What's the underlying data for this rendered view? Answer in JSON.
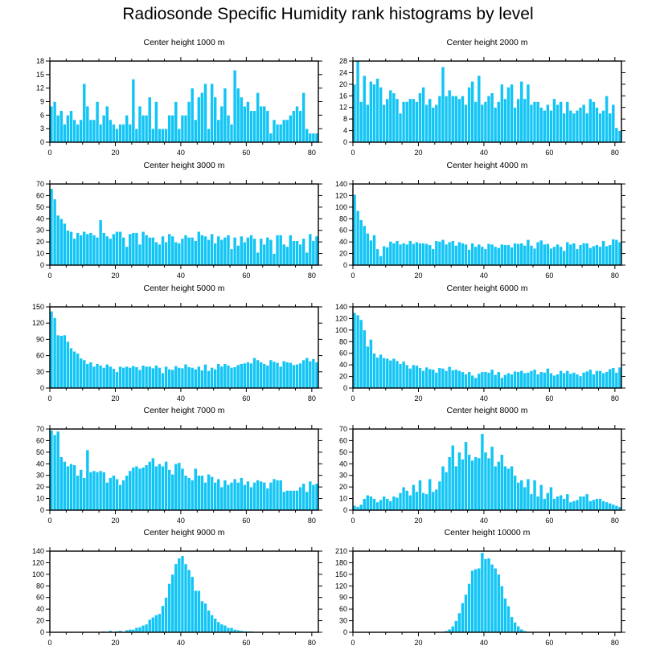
{
  "title": "Radiosonde Specific Humidity rank histograms by level",
  "colors": {
    "bar": "#12C5F5",
    "bar_edge": "#ffffff",
    "axis": "#000000"
  },
  "chart_data": [
    {
      "type": "bar",
      "title": "Center height 1000 m",
      "xlim": [
        0,
        82
      ],
      "ylim": [
        0,
        18
      ],
      "xticks": [
        0,
        20,
        40,
        60,
        80
      ],
      "yticks": [
        0,
        3,
        6,
        9,
        12,
        15,
        18
      ],
      "values": [
        8,
        9,
        6,
        7,
        4,
        6,
        7,
        5,
        4,
        5,
        13,
        8,
        5,
        5,
        9,
        4,
        6,
        8,
        5,
        4,
        3,
        4,
        4,
        6,
        4,
        14,
        3,
        8,
        6,
        6,
        10,
        3,
        9,
        3,
        3,
        3,
        6,
        6,
        9,
        3,
        6,
        6,
        9,
        12,
        5,
        10,
        11,
        13,
        3,
        13,
        10,
        5,
        8,
        12,
        6,
        4,
        16,
        12,
        10,
        8,
        9,
        7,
        7,
        11,
        8,
        8,
        7,
        2,
        5,
        4,
        4,
        5,
        5,
        6,
        7,
        8,
        7,
        11,
        3,
        2,
        2,
        2
      ]
    },
    {
      "type": "bar",
      "title": "Center height 2000 m",
      "xlim": [
        0,
        82
      ],
      "ylim": [
        0,
        28
      ],
      "xticks": [
        0,
        20,
        40,
        60,
        80
      ],
      "yticks": [
        0,
        4,
        8,
        12,
        16,
        20,
        24,
        28
      ],
      "values": [
        20,
        28,
        14,
        23,
        13,
        21,
        20,
        22,
        19,
        13,
        15,
        18,
        17,
        15,
        10,
        14,
        14,
        15,
        15,
        14,
        17,
        19,
        13,
        15,
        12,
        13,
        16,
        26,
        16,
        18,
        16,
        16,
        15,
        16,
        13,
        19,
        21,
        14,
        23,
        13,
        14,
        16,
        17,
        12,
        14,
        20,
        15,
        19,
        20,
        12,
        15,
        21,
        15,
        20,
        13,
        14,
        14,
        12,
        11,
        13,
        11,
        15,
        13,
        14,
        10,
        14,
        11,
        10,
        11,
        12,
        13,
        10,
        15,
        14,
        12,
        10,
        11,
        16,
        10,
        13,
        5,
        4
      ]
    },
    {
      "type": "bar",
      "title": "Center height 3000 m",
      "xlim": [
        0,
        82
      ],
      "ylim": [
        0,
        70
      ],
      "xticks": [
        0,
        20,
        40,
        60,
        80
      ],
      "yticks": [
        0,
        10,
        20,
        30,
        40,
        50,
        60,
        70
      ],
      "values": [
        66,
        57,
        43,
        40,
        36,
        30,
        29,
        23,
        28,
        26,
        29,
        27,
        28,
        26,
        24,
        39,
        28,
        25,
        23,
        27,
        29,
        29,
        24,
        16,
        27,
        28,
        28,
        18,
        29,
        26,
        24,
        24,
        20,
        18,
        25,
        20,
        27,
        25,
        20,
        19,
        23,
        26,
        24,
        24,
        21,
        29,
        26,
        25,
        22,
        27,
        19,
        25,
        22,
        24,
        26,
        14,
        24,
        17,
        25,
        20,
        24,
        26,
        23,
        11,
        23,
        18,
        24,
        22,
        10,
        26,
        26,
        18,
        16,
        26,
        21,
        21,
        18,
        23,
        11,
        27,
        21,
        25
      ]
    },
    {
      "type": "bar",
      "title": "Center height 4000 m",
      "xlim": [
        0,
        82
      ],
      "ylim": [
        0,
        140
      ],
      "xticks": [
        0,
        20,
        40,
        60,
        80
      ],
      "yticks": [
        0,
        20,
        40,
        60,
        80,
        100,
        120,
        140
      ],
      "values": [
        122,
        94,
        78,
        68,
        55,
        43,
        52,
        28,
        16,
        33,
        31,
        41,
        38,
        42,
        36,
        38,
        36,
        42,
        37,
        40,
        38,
        38,
        37,
        35,
        28,
        42,
        41,
        44,
        36,
        40,
        42,
        34,
        40,
        38,
        36,
        27,
        38,
        32,
        36,
        32,
        28,
        37,
        36,
        32,
        30,
        36,
        35,
        35,
        31,
        38,
        37,
        38,
        34,
        44,
        34,
        29,
        40,
        43,
        36,
        37,
        29,
        32,
        36,
        32,
        25,
        40,
        36,
        38,
        28,
        35,
        38,
        38,
        30,
        33,
        35,
        32,
        42,
        33,
        35,
        45,
        44,
        40
      ]
    },
    {
      "type": "bar",
      "title": "Center height 5000 m",
      "xlim": [
        0,
        82
      ],
      "ylim": [
        0,
        150
      ],
      "xticks": [
        0,
        20,
        40,
        60,
        80
      ],
      "yticks": [
        0,
        30,
        60,
        90,
        120,
        150
      ],
      "values": [
        142,
        130,
        98,
        97,
        98,
        86,
        74,
        68,
        64,
        55,
        52,
        45,
        48,
        40,
        45,
        42,
        38,
        44,
        40,
        36,
        30,
        40,
        38,
        40,
        38,
        41,
        39,
        34,
        42,
        40,
        40,
        37,
        42,
        38,
        28,
        40,
        35,
        34,
        41,
        38,
        37,
        44,
        39,
        38,
        35,
        40,
        33,
        44,
        32,
        38,
        35,
        45,
        40,
        45,
        42,
        38,
        39,
        43,
        45,
        46,
        48,
        46,
        56,
        52,
        48,
        45,
        42,
        52,
        49,
        47,
        40,
        50,
        48,
        47,
        43,
        44,
        46,
        52,
        56,
        50,
        54,
        48
      ]
    },
    {
      "type": "bar",
      "title": "Center height 6000 m",
      "xlim": [
        0,
        82
      ],
      "ylim": [
        0,
        140
      ],
      "xticks": [
        0,
        20,
        40,
        60,
        80
      ],
      "yticks": [
        0,
        20,
        40,
        60,
        80,
        100,
        120,
        140
      ],
      "values": [
        130,
        126,
        118,
        100,
        72,
        84,
        60,
        53,
        58,
        52,
        51,
        48,
        51,
        47,
        42,
        46,
        40,
        34,
        40,
        39,
        35,
        30,
        36,
        33,
        32,
        27,
        35,
        34,
        30,
        37,
        31,
        32,
        30,
        28,
        24,
        28,
        22,
        18,
        25,
        28,
        28,
        27,
        32,
        23,
        28,
        18,
        23,
        26,
        24,
        29,
        28,
        30,
        26,
        27,
        30,
        32,
        24,
        28,
        27,
        34,
        26,
        22,
        24,
        30,
        26,
        30,
        25,
        27,
        24,
        21,
        27,
        29,
        32,
        24,
        30,
        30,
        26,
        28,
        33,
        35,
        27,
        36
      ]
    },
    {
      "type": "bar",
      "title": "Center height 7000 m",
      "xlim": [
        0,
        82
      ],
      "ylim": [
        0,
        70
      ],
      "xticks": [
        0,
        20,
        40,
        60,
        80
      ],
      "yticks": [
        0,
        10,
        20,
        30,
        40,
        50,
        60,
        70
      ],
      "values": [
        69,
        65,
        68,
        46,
        42,
        38,
        40,
        39,
        30,
        35,
        28,
        52,
        33,
        34,
        33,
        34,
        33,
        24,
        28,
        30,
        27,
        22,
        26,
        30,
        34,
        37,
        38,
        36,
        37,
        39,
        42,
        45,
        38,
        40,
        38,
        42,
        35,
        31,
        40,
        41,
        36,
        30,
        28,
        26,
        36,
        30,
        30,
        24,
        31,
        29,
        24,
        27,
        20,
        26,
        22,
        24,
        27,
        24,
        28,
        22,
        25,
        20,
        24,
        26,
        25,
        24,
        19,
        24,
        27,
        26,
        26,
        16,
        17,
        17,
        17,
        17,
        20,
        23,
        16,
        25,
        22,
        23
      ]
    },
    {
      "type": "bar",
      "title": "Center height 8000 m",
      "xlim": [
        0,
        82
      ],
      "ylim": [
        0,
        70
      ],
      "xticks": [
        0,
        20,
        40,
        60,
        80
      ],
      "yticks": [
        0,
        10,
        20,
        30,
        40,
        50,
        60,
        70
      ],
      "values": [
        4,
        3,
        5,
        10,
        13,
        12,
        10,
        7,
        9,
        12,
        10,
        8,
        12,
        11,
        15,
        20,
        17,
        13,
        22,
        16,
        26,
        15,
        14,
        27,
        16,
        18,
        25,
        38,
        33,
        46,
        56,
        38,
        50,
        44,
        59,
        48,
        43,
        46,
        45,
        66,
        50,
        45,
        55,
        38,
        42,
        48,
        38,
        36,
        38,
        30,
        24,
        26,
        20,
        27,
        14,
        26,
        12,
        22,
        10,
        15,
        20,
        10,
        12,
        13,
        10,
        14,
        7,
        8,
        9,
        12,
        12,
        14,
        8,
        9,
        10,
        10,
        8,
        7,
        6,
        5,
        4,
        3
      ]
    },
    {
      "type": "bar",
      "title": "Center height 9000 m",
      "xlim": [
        0,
        82
      ],
      "ylim": [
        0,
        140
      ],
      "xticks": [
        0,
        20,
        40,
        60,
        80
      ],
      "yticks": [
        0,
        20,
        40,
        60,
        80,
        100,
        120,
        140
      ],
      "values": [
        0,
        0,
        0,
        0,
        0,
        0,
        0,
        0,
        1,
        0,
        0,
        0,
        1,
        1,
        1,
        0,
        2,
        1,
        3,
        1,
        2,
        3,
        1,
        4,
        5,
        5,
        8,
        9,
        12,
        14,
        22,
        26,
        30,
        32,
        46,
        60,
        84,
        100,
        118,
        128,
        132,
        118,
        108,
        96,
        72,
        72,
        54,
        50,
        38,
        30,
        24,
        18,
        14,
        12,
        8,
        8,
        5,
        4,
        3,
        2,
        2,
        2,
        1,
        1,
        1,
        0,
        0,
        0,
        0,
        0,
        0,
        0,
        1,
        0,
        0,
        0,
        0,
        0,
        1,
        0,
        0,
        0
      ]
    },
    {
      "type": "bar",
      "title": "Center height 10000 m",
      "xlim": [
        0,
        82
      ],
      "ylim": [
        0,
        210
      ],
      "xticks": [
        0,
        20,
        40,
        60,
        80
      ],
      "yticks": [
        0,
        30,
        60,
        90,
        120,
        150,
        180,
        210
      ],
      "values": [
        0,
        0,
        0,
        0,
        0,
        0,
        0,
        0,
        0,
        0,
        0,
        0,
        0,
        0,
        0,
        0,
        0,
        0,
        0,
        0,
        0,
        0,
        0,
        0,
        0,
        0,
        1,
        2,
        4,
        8,
        16,
        30,
        50,
        76,
        98,
        126,
        160,
        164,
        166,
        206,
        190,
        192,
        176,
        166,
        150,
        120,
        88,
        68,
        40,
        26,
        16,
        8,
        4,
        2,
        2,
        1,
        1,
        0,
        0,
        0,
        0,
        0,
        0,
        0,
        0,
        0,
        0,
        0,
        0,
        0,
        0,
        0,
        0,
        0,
        0,
        0,
        0,
        0,
        0,
        0,
        0,
        0
      ]
    }
  ]
}
